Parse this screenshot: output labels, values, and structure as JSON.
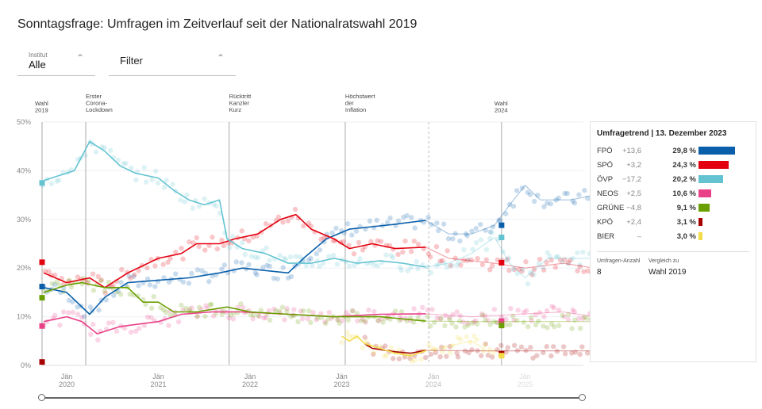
{
  "title": "Sonntagsfrage: Umfragen im Zeitverlauf seit der Nationalratswahl 2019",
  "filters": {
    "institut_label": "Institut",
    "institut_value": "Alle",
    "filter_label": "Filter"
  },
  "panel": {
    "header": "Umfragetrend | 13. Dezember 2023",
    "rows": [
      {
        "party": "FPÖ",
        "diff": "+13,6",
        "value": "29,8 %",
        "pct": 29.8,
        "color": "#0a5fab"
      },
      {
        "party": "SPÖ",
        "diff": "+3,2",
        "value": "24,3 %",
        "pct": 24.3,
        "color": "#e3000f"
      },
      {
        "party": "ÖVP",
        "diff": "−17,2",
        "value": "20,2 %",
        "pct": 20.2,
        "color": "#63c3d1"
      },
      {
        "party": "NEOS",
        "diff": "+2,5",
        "value": "10,6 %",
        "pct": 10.6,
        "color": "#e84188"
      },
      {
        "party": "GRÜNE",
        "diff": "−4,8",
        "value": "9,1 %",
        "pct": 9.1,
        "color": "#6a9f00"
      },
      {
        "party": "KPÖ",
        "diff": "+2,4",
        "value": "3,1 %",
        "pct": 3.1,
        "color": "#a50000"
      },
      {
        "party": "BIER",
        "diff": "–",
        "value": "3,0 %",
        "pct": 3.0,
        "color": "#f2dc47"
      }
    ],
    "count_label": "Umfragen-Anzahl",
    "count": "8",
    "compare_label": "Vergleich zu",
    "compare_value": "Wahl 2019"
  },
  "chart_data": {
    "type": "line",
    "ylim": [
      0,
      50
    ],
    "yticks": [
      "0%",
      "10%",
      "20%",
      "30%",
      "40%",
      "50%"
    ],
    "xlim": [
      "2019-09",
      "2025-11"
    ],
    "xticks": [
      {
        "date": "2020-01",
        "label1": "Jän",
        "label2": "2020"
      },
      {
        "date": "2021-01",
        "label1": "Jän",
        "label2": "2021"
      },
      {
        "date": "2022-01",
        "label1": "Jän",
        "label2": "2022"
      },
      {
        "date": "2023-01",
        "label1": "Jän",
        "label2": "2023"
      },
      {
        "date": "2024-01",
        "label1": "Jän",
        "label2": "2024"
      },
      {
        "date": "2025-01",
        "label1": "Jän",
        "label2": "2025"
      }
    ],
    "current_date": "2023-12-13",
    "events": [
      {
        "date": "2019-09-29",
        "lines": [
          "Wahl",
          "2019"
        ]
      },
      {
        "date": "2020-03-16",
        "lines": [
          "Erster",
          "Corona-",
          "Lockdown"
        ]
      },
      {
        "date": "2021-10-09",
        "lines": [
          "Rücktritt",
          "Kanzler",
          "Kurz"
        ]
      },
      {
        "date": "2023-01-15",
        "lines": [
          "Höchstwert",
          "der",
          "Inflation"
        ]
      },
      {
        "date": "2024-09-29",
        "lines": [
          "Wahl",
          "2024"
        ]
      }
    ],
    "series": [
      {
        "name": "FPÖ",
        "color": "#0a5fab",
        "election_2019": 16.2,
        "election_2024": 28.8,
        "points": [
          [
            "2019-10",
            16
          ],
          [
            "2020-01",
            15
          ],
          [
            "2020-04",
            10.5
          ],
          [
            "2020-06",
            14
          ],
          [
            "2020-09",
            17
          ],
          [
            "2021-01",
            17.5
          ],
          [
            "2021-05",
            18
          ],
          [
            "2021-09",
            19
          ],
          [
            "2021-12",
            20
          ],
          [
            "2022-03",
            19.5
          ],
          [
            "2022-06",
            19
          ],
          [
            "2022-08",
            22
          ],
          [
            "2022-11",
            26
          ],
          [
            "2023-02",
            28
          ],
          [
            "2023-05",
            28.5
          ],
          [
            "2023-08",
            29
          ],
          [
            "2023-12",
            29.8
          ],
          [
            "2024-03",
            27
          ],
          [
            "2024-06",
            27
          ],
          [
            "2024-09",
            28.8
          ],
          [
            "2024-11",
            33
          ],
          [
            "2025-01",
            37
          ],
          [
            "2025-03",
            34
          ],
          [
            "2025-07",
            34
          ],
          [
            "2025-10",
            35
          ]
        ]
      },
      {
        "name": "SPÖ",
        "color": "#e3000f",
        "election_2019": 21.2,
        "election_2024": 21.1,
        "points": [
          [
            "2019-10",
            19
          ],
          [
            "2020-01",
            17
          ],
          [
            "2020-04",
            18
          ],
          [
            "2020-06",
            16
          ],
          [
            "2020-09",
            19
          ],
          [
            "2021-01",
            22
          ],
          [
            "2021-04",
            23
          ],
          [
            "2021-06",
            25
          ],
          [
            "2021-09",
            25
          ],
          [
            "2021-11",
            26
          ],
          [
            "2022-02",
            27
          ],
          [
            "2022-05",
            30
          ],
          [
            "2022-07",
            31
          ],
          [
            "2022-09",
            28
          ],
          [
            "2022-12",
            26
          ],
          [
            "2023-02",
            24
          ],
          [
            "2023-05",
            25
          ],
          [
            "2023-08",
            24
          ],
          [
            "2023-12",
            24.3
          ],
          [
            "2024-03",
            22
          ],
          [
            "2024-09",
            21
          ],
          [
            "2025-01",
            20
          ],
          [
            "2025-06",
            21
          ],
          [
            "2025-10",
            20
          ]
        ]
      },
      {
        "name": "ÖVP",
        "color": "#63c3d1",
        "election_2019": 37.5,
        "election_2024": 26.3,
        "points": [
          [
            "2019-10",
            38
          ],
          [
            "2019-12",
            39
          ],
          [
            "2020-02",
            40
          ],
          [
            "2020-03",
            43
          ],
          [
            "2020-04",
            46
          ],
          [
            "2020-06",
            44
          ],
          [
            "2020-08",
            41
          ],
          [
            "2020-10",
            39.5
          ],
          [
            "2021-01",
            38.5
          ],
          [
            "2021-03",
            36
          ],
          [
            "2021-05",
            34
          ],
          [
            "2021-07",
            33
          ],
          [
            "2021-09",
            34
          ],
          [
            "2021-10",
            26
          ],
          [
            "2021-12",
            24
          ],
          [
            "2022-03",
            23
          ],
          [
            "2022-06",
            21
          ],
          [
            "2022-09",
            21
          ],
          [
            "2022-12",
            22
          ],
          [
            "2023-03",
            21
          ],
          [
            "2023-06",
            21.5
          ],
          [
            "2023-09",
            21
          ],
          [
            "2023-12",
            20.2
          ],
          [
            "2024-03",
            21
          ],
          [
            "2024-06",
            23
          ],
          [
            "2024-09",
            26.3
          ],
          [
            "2024-11",
            21
          ],
          [
            "2025-01",
            18
          ],
          [
            "2025-04",
            22
          ],
          [
            "2025-10",
            22
          ]
        ]
      },
      {
        "name": "NEOS",
        "color": "#e84188",
        "election_2019": 8.1,
        "election_2024": 9.1,
        "points": [
          [
            "2019-10",
            9
          ],
          [
            "2020-01",
            10
          ],
          [
            "2020-03",
            9
          ],
          [
            "2020-05",
            6.5
          ],
          [
            "2020-08",
            8
          ],
          [
            "2021-01",
            9
          ],
          [
            "2021-04",
            10.5
          ],
          [
            "2021-08",
            11
          ],
          [
            "2021-12",
            11
          ],
          [
            "2022-06",
            10.5
          ],
          [
            "2022-12",
            10
          ],
          [
            "2023-06",
            10.5
          ],
          [
            "2023-12",
            10.6
          ],
          [
            "2024-06",
            10
          ],
          [
            "2025-06",
            11
          ],
          [
            "2025-10",
            10
          ]
        ]
      },
      {
        "name": "GRÜNE",
        "color": "#6a9f00",
        "election_2019": 13.9,
        "election_2024": 8.2,
        "points": [
          [
            "2019-10",
            15
          ],
          [
            "2020-01",
            16.5
          ],
          [
            "2020-03",
            17
          ],
          [
            "2020-06",
            16
          ],
          [
            "2020-09",
            16
          ],
          [
            "2020-11",
            13
          ],
          [
            "2021-01",
            13
          ],
          [
            "2021-03",
            11
          ],
          [
            "2021-06",
            11
          ],
          [
            "2021-10",
            12
          ],
          [
            "2022-01",
            11
          ],
          [
            "2022-06",
            10.5
          ],
          [
            "2022-12",
            10
          ],
          [
            "2023-06",
            10
          ],
          [
            "2023-12",
            9.1
          ],
          [
            "2024-06",
            9
          ],
          [
            "2025-06",
            9
          ],
          [
            "2025-10",
            9
          ]
        ]
      },
      {
        "name": "KPÖ",
        "color": "#a50000",
        "election_2019": 0.7,
        "election_2024": 2.4,
        "points": [
          [
            "2023-04",
            4.5
          ],
          [
            "2023-05",
            3.5
          ],
          [
            "2023-08",
            2.8
          ],
          [
            "2023-10",
            2.5
          ],
          [
            "2023-12",
            3.1
          ],
          [
            "2024-06",
            3
          ],
          [
            "2025-06",
            3
          ],
          [
            "2025-10",
            3
          ]
        ]
      },
      {
        "name": "BIER",
        "color": "#f2dc47",
        "election_2024": 2.0,
        "points": [
          [
            "2023-01",
            6
          ],
          [
            "2023-02",
            5
          ],
          [
            "2023-03",
            6
          ],
          [
            "2023-04",
            4.5
          ],
          [
            "2023-08",
            2.5
          ],
          [
            "2023-10",
            2
          ],
          [
            "2023-12",
            3
          ],
          [
            "2024-06",
            5
          ],
          [
            "2024-09",
            2
          ]
        ]
      }
    ]
  }
}
